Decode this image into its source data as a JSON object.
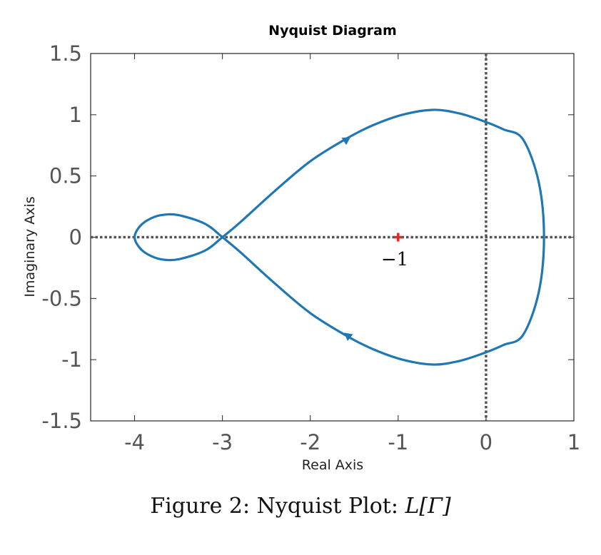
{
  "caption": {
    "prefix": "Figure 2: Nyquist Plot: ",
    "math": "L[Γ]"
  },
  "colors": {
    "curve": "#1f77b4",
    "marker": "#e8262a",
    "reference_lines": "#555555",
    "frame": "#262626",
    "tick_labels": "#555555"
  },
  "chart_data": {
    "type": "line",
    "title": "Nyquist Diagram",
    "xlabel": "Real Axis",
    "ylabel": "Imaginary Axis",
    "xlim": [
      -4.5,
      1
    ],
    "ylim": [
      -1.5,
      1.5
    ],
    "xticks": [
      -4,
      -3,
      -2,
      -1,
      0,
      1
    ],
    "xtick_labels": [
      "-4",
      "-3",
      "-2",
      "-1",
      "0",
      "1"
    ],
    "yticks": [
      -1.5,
      -1,
      -0.5,
      0,
      0.5,
      1,
      1.5
    ],
    "ytick_labels": [
      "-1.5",
      "-1",
      "-0.5",
      "0",
      "0.5",
      "1",
      "1.5"
    ],
    "grid": false,
    "reference_lines": {
      "x": 0,
      "y": 0,
      "style": "dotted"
    },
    "series": [
      {
        "closed": true,
        "x": [
          0.66,
          0.6,
          0.42,
          0.2,
          0.0,
          -0.3,
          -0.6,
          -0.95,
          -1.3,
          -1.6,
          -2.0,
          -2.4,
          -2.8,
          -3.0,
          -3.2,
          -3.5,
          -3.7,
          -3.85,
          -3.95,
          -4.0,
          -3.95,
          -3.85,
          -3.7,
          -3.5,
          -3.2,
          -3.0,
          -2.8,
          -2.4,
          -2.0,
          -1.6,
          -1.3,
          -0.95,
          -0.6,
          -0.3,
          0.0,
          0.2,
          0.42,
          0.6
        ],
        "y": [
          0.0,
          -0.45,
          -0.8,
          -0.88,
          -0.94,
          -1.01,
          -1.04,
          -1.0,
          -0.91,
          -0.8,
          -0.62,
          -0.38,
          -0.12,
          0.0,
          0.11,
          0.18,
          0.18,
          0.14,
          0.08,
          0.0,
          -0.08,
          -0.14,
          -0.18,
          -0.18,
          -0.11,
          0.0,
          0.12,
          0.38,
          0.62,
          0.8,
          0.91,
          1.0,
          1.04,
          1.01,
          0.94,
          0.88,
          0.8,
          0.45
        ]
      }
    ],
    "direction_arrows": [
      {
        "x": -1.58,
        "y": 0.8,
        "toward": [
          -1.45,
          0.86
        ]
      },
      {
        "x": -1.58,
        "y": -0.8,
        "toward": [
          -1.72,
          -0.72
        ]
      }
    ],
    "marker": {
      "x": -1,
      "y": 0,
      "symbol": "+",
      "label": "−1"
    }
  }
}
